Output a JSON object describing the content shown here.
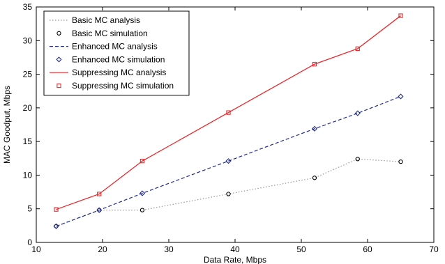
{
  "chart_data": {
    "type": "line",
    "title": "",
    "xlabel": "Data Rate, Mbps",
    "ylabel": "MAC Goodput, Mbps",
    "xlim": [
      10,
      70
    ],
    "ylim": [
      0,
      35
    ],
    "xticks": [
      "10",
      "20",
      "30",
      "40",
      "50",
      "60",
      "70"
    ],
    "yticks": [
      "0",
      "5",
      "10",
      "15",
      "20",
      "25",
      "30",
      "35"
    ],
    "grid": false,
    "legend_position": "top-left",
    "x": [
      13,
      19.5,
      26,
      39,
      52,
      58.5,
      65
    ],
    "series": [
      {
        "name": "Basic MC analysis",
        "kind": "line",
        "style": "dotted",
        "color": "#999999",
        "values": [
          2.4,
          4.8,
          4.8,
          7.2,
          9.6,
          12.4,
          12.0
        ]
      },
      {
        "name": "Basic MC simulation",
        "kind": "marker",
        "marker": "circle",
        "color": "#000000",
        "values": [
          2.4,
          4.8,
          4.8,
          7.2,
          9.6,
          12.4,
          12.0
        ]
      },
      {
        "name": "Enhanced MC analysis",
        "kind": "line",
        "style": "dashed",
        "color": "#1f2a8c",
        "values": [
          2.4,
          4.8,
          7.3,
          12.1,
          16.9,
          19.2,
          21.7
        ]
      },
      {
        "name": "Enhanced MC simulation",
        "kind": "marker",
        "marker": "diamond",
        "color": "#1f2a8c",
        "values": [
          2.4,
          4.8,
          7.3,
          12.1,
          16.9,
          19.2,
          21.7
        ]
      },
      {
        "name": "Suppressing MC analysis",
        "kind": "line",
        "style": "solid",
        "color": "#e8282c",
        "values": [
          4.9,
          7.2,
          12.1,
          19.3,
          26.5,
          28.8,
          33.7
        ]
      },
      {
        "name": "Suppressing MC simulation",
        "kind": "marker",
        "marker": "square",
        "color": "#e8282c",
        "values": [
          4.9,
          7.2,
          12.1,
          19.3,
          26.5,
          28.8,
          33.7
        ]
      }
    ]
  }
}
